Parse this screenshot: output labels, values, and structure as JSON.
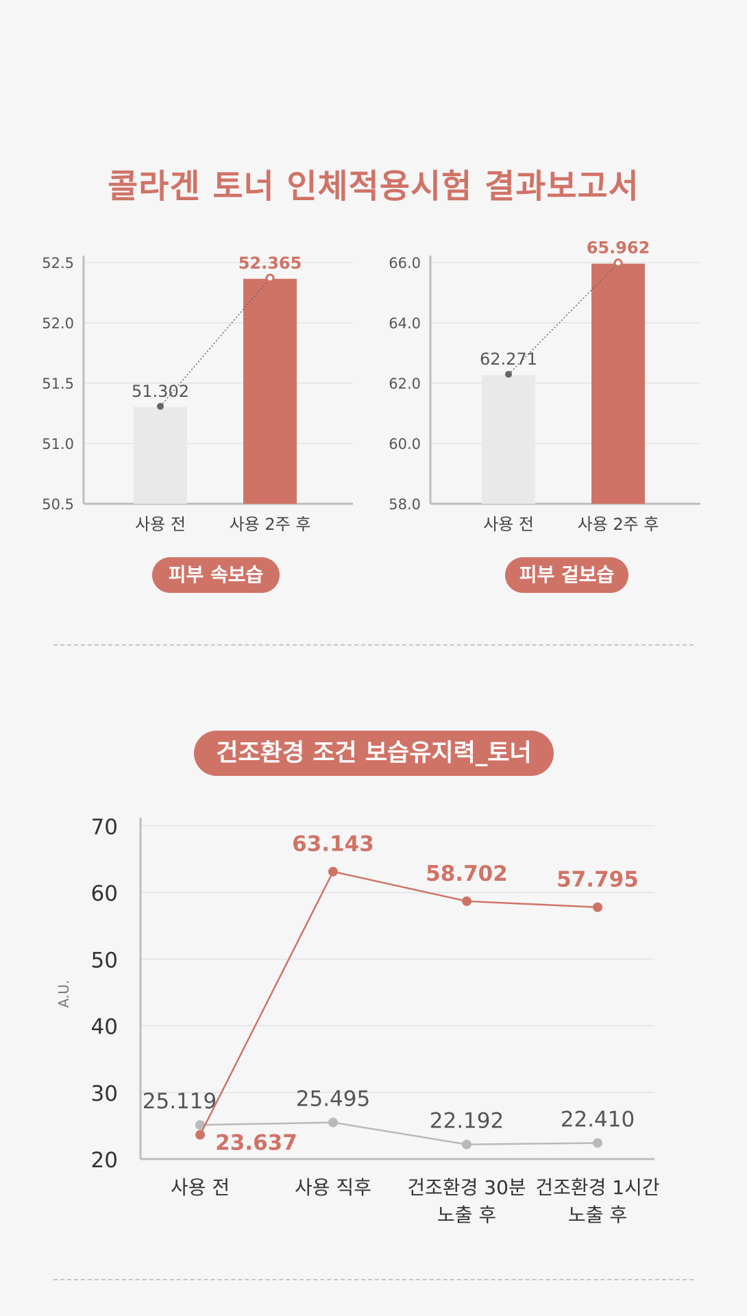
{
  "page": {
    "title": "콜라겐 토너 인체적용시험 결과보고서"
  },
  "colors": {
    "accent": "#d07367",
    "before": "#e9e9e9",
    "grey_line": "#b9b9b9",
    "background": "#f6f6f6"
  },
  "chart_data": [
    {
      "type": "bar",
      "label": "피부 속보습",
      "categories": [
        "사용 전",
        "사용 2주 후"
      ],
      "values": [
        51.302,
        52.365
      ],
      "value_labels": [
        "51.302",
        "52.365"
      ],
      "ylim": [
        50.5,
        52.5
      ],
      "yticks": [
        "52.5",
        "52.0",
        "51.5",
        "51.0",
        "50.5"
      ],
      "grid": true
    },
    {
      "type": "bar",
      "label": "피부 겉보습",
      "categories": [
        "사용 전",
        "사용 2주 후"
      ],
      "values": [
        62.271,
        65.962
      ],
      "value_labels": [
        "62.271",
        "65.962"
      ],
      "ylim": [
        58.0,
        66.0
      ],
      "yticks": [
        "66.0",
        "64.0",
        "62.0",
        "60.0",
        "58.0"
      ],
      "grid": true
    },
    {
      "type": "line",
      "title": "건조환경 조건 보습유지력_토너",
      "ylabel": "A.U.",
      "categories": [
        [
          "사용 전"
        ],
        [
          "사용 직후"
        ],
        [
          "건조환경 30분",
          "노출 후"
        ],
        [
          "건조환경 1시간",
          "노출 후"
        ]
      ],
      "series": [
        {
          "values": [
            23.637,
            63.143,
            58.702,
            57.795
          ],
          "labels": [
            "23.637",
            "63.143",
            "58.702",
            "57.795"
          ]
        },
        {
          "values": [
            25.119,
            25.495,
            22.192,
            22.41
          ],
          "labels": [
            "25.119",
            "25.495",
            "22.192",
            "22.410"
          ]
        }
      ],
      "ylim": [
        20,
        70
      ],
      "yticks": [
        "70",
        "60",
        "50",
        "40",
        "30",
        "20"
      ],
      "grid": true
    }
  ]
}
